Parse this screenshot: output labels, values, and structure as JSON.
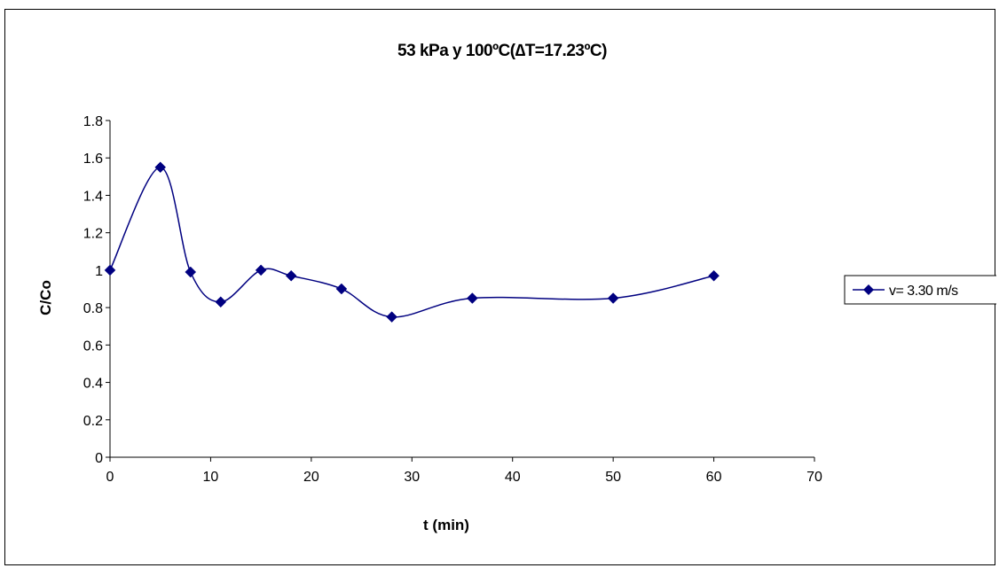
{
  "chart_data": {
    "type": "line",
    "title": "53 kPa y 100ºC(∆T=17.23ºC)",
    "xlabel": "t (min)",
    "ylabel": "C/Co",
    "xlim": [
      0,
      70
    ],
    "ylim": [
      0,
      1.8
    ],
    "x_ticks": [
      0,
      10,
      20,
      30,
      40,
      50,
      60,
      70
    ],
    "y_ticks": [
      0,
      0.2,
      0.4,
      0.6,
      0.8,
      1,
      1.2,
      1.4,
      1.6,
      1.8
    ],
    "grid": false,
    "smoothed": true,
    "legend_position": "right",
    "series": [
      {
        "name": "v= 3.30 m/s",
        "color": "#000080",
        "marker": "diamond",
        "x": [
          0,
          5,
          8,
          11,
          15,
          18,
          23,
          28,
          36,
          50,
          60
        ],
        "y": [
          1.0,
          1.55,
          0.99,
          0.83,
          1.0,
          0.97,
          0.9,
          0.75,
          0.85,
          0.85,
          0.97
        ]
      }
    ]
  }
}
